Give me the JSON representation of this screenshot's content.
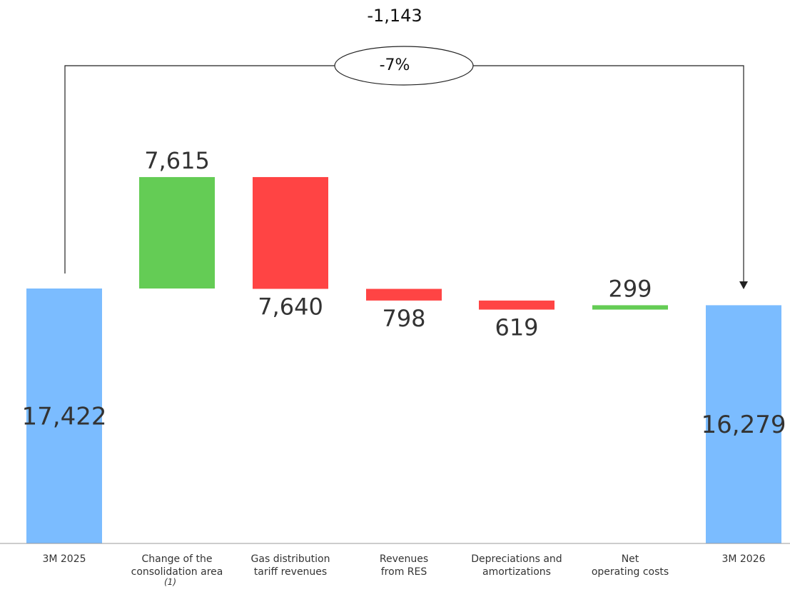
{
  "chart_data": {
    "type": "waterfall",
    "start": {
      "label": "3M 2025",
      "value": 17422,
      "display": "17,422"
    },
    "end": {
      "label": "3M 2026",
      "value": 16279,
      "display": "16,279"
    },
    "steps": [
      {
        "label": "Change of the\nconsolidation area",
        "delta": 7615,
        "display": "7,615"
      },
      {
        "label": "Gas distribution\ntariff revenues",
        "delta": -7640,
        "display": "7,640"
      },
      {
        "label": "Revenues\nfrom RES",
        "delta": -798,
        "display": "798"
      },
      {
        "label": "Depreciations and\namortizations",
        "delta": -619,
        "display": "619"
      },
      {
        "label": "Net\noperating costs",
        "delta": 299,
        "display": "299"
      }
    ],
    "total_change": {
      "value": -1143,
      "display": "-1,143",
      "percent": "-7%"
    },
    "footnote": "(1)",
    "colors": {
      "total": "#7bbcff",
      "increase": "#64cc55",
      "decrease": "#ff4444",
      "axis": "#999999"
    }
  }
}
